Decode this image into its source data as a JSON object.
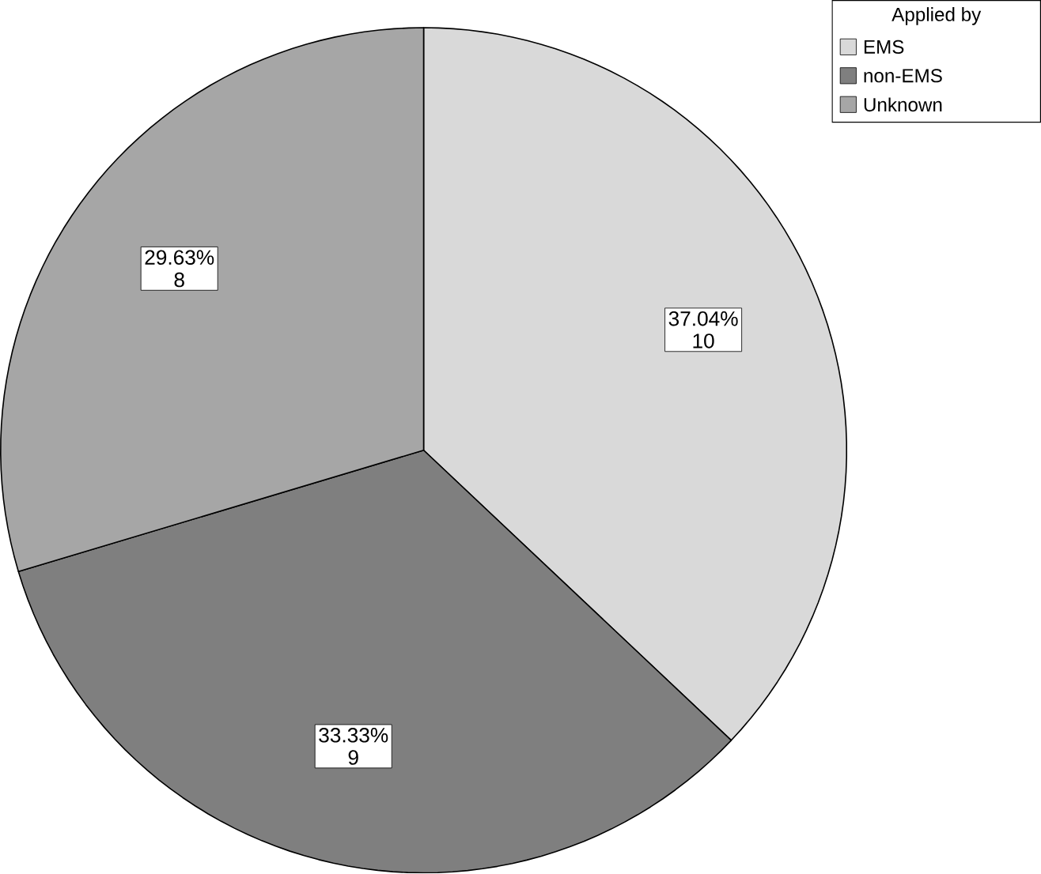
{
  "chart_data": {
    "type": "pie",
    "legend_title": "Applied by",
    "categories": [
      "EMS",
      "non-EMS",
      "Unknown"
    ],
    "values": [
      37.04,
      33.33,
      29.63
    ],
    "colors": [
      "#d9d9d9",
      "#7f7f7f",
      "#a6a6a6"
    ],
    "value_labels": [
      "37.04%",
      "33.33%",
      "29.63%"
    ],
    "legend": "top right",
    "annotations": [
      {
        "text": "10",
        "x": "EMS"
      },
      {
        "text": "9",
        "x": "non-EMS"
      },
      {
        "text": "8",
        "x": "Unknown"
      }
    ]
  }
}
